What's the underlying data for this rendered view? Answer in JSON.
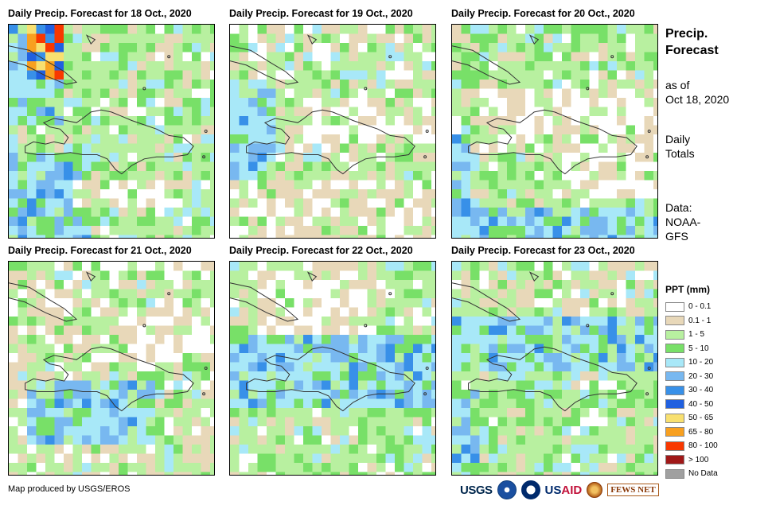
{
  "panels": [
    {
      "title": "Daily Precip. Forecast for 18 Oct., 2020",
      "scene": "d18"
    },
    {
      "title": "Daily Precip. Forecast for 19 Oct., 2020",
      "scene": "d19"
    },
    {
      "title": "Daily Precip. Forecast for 20 Oct., 2020",
      "scene": "d20"
    },
    {
      "title": "Daily Precip. Forecast for 21 Oct., 2020",
      "scene": "d21"
    },
    {
      "title": "Daily Precip. Forecast for 22 Oct., 2020",
      "scene": "d22"
    },
    {
      "title": "Daily Precip. Forecast for 23 Oct., 2020",
      "scene": "d23"
    }
  ],
  "side": {
    "title_line1": "Precip.",
    "title_line2": "Forecast",
    "asof_line1": "as of",
    "asof_line2": "Oct 18, 2020",
    "totals_line1": "Daily",
    "totals_line2": "Totals",
    "data_line1": "Data:",
    "data_line2": "NOAA-",
    "data_line3": "GFS"
  },
  "legend": {
    "title": "PPT (mm)",
    "items": [
      {
        "label": "0 - 0.1",
        "color": "#ffffff"
      },
      {
        "label": "0.1 - 1",
        "color": "#e8d8b9"
      },
      {
        "label": "1 - 5",
        "color": "#b8f0a0"
      },
      {
        "label": "5 - 10",
        "color": "#78e068"
      },
      {
        "label": "10 - 20",
        "color": "#a8e8f8"
      },
      {
        "label": "20 - 30",
        "color": "#78b8f0"
      },
      {
        "label": "30 - 40",
        "color": "#3890e8"
      },
      {
        "label": "40 - 50",
        "color": "#2060e0"
      },
      {
        "label": "50 - 65",
        "color": "#f8e070"
      },
      {
        "label": "65 - 80",
        "color": "#f8a020"
      },
      {
        "label": "80 - 100",
        "color": "#f83800"
      },
      {
        "label": "> 100",
        "color": "#a01818"
      },
      {
        "label": "No Data",
        "color": "#a0a0a0"
      }
    ]
  },
  "footer": {
    "credit": "Map produced by USGS/EROS",
    "logo_usgs": "USGS",
    "logo_usaid_a": "US",
    "logo_usaid_b": "AID",
    "logo_fews": "FEWS NET"
  }
}
